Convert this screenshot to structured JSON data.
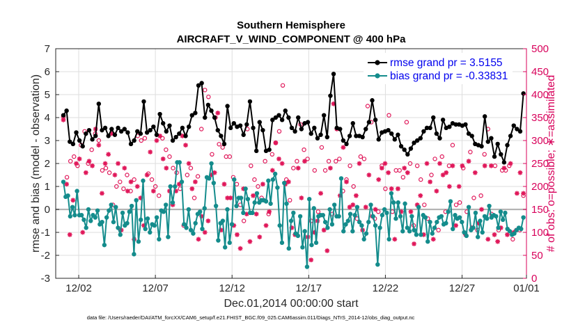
{
  "chart_data": {
    "type": "line",
    "title": "Southern Hemisphere",
    "subtitle": "AIRCRAFT_V_WIND_COMPONENT @ 400 hPa",
    "xlabel": "Dec.01,2014 00:00:00 start",
    "ylabel_left": "rmse and bias (model - observation)",
    "ylabel_right": "# of obs: o=possible; ∗=assimilated",
    "ylim_left": [
      -3,
      7
    ],
    "ylim_right": [
      0,
      500
    ],
    "yticks_left": [
      "-3",
      "-2",
      "-1",
      "0",
      "1",
      "2",
      "3",
      "4",
      "5",
      "6",
      "7"
    ],
    "yticks_right": [
      "0",
      "50",
      "100",
      "150",
      "200",
      "250",
      "300",
      "350",
      "400",
      "450",
      "500"
    ],
    "xlim": [
      0.5,
      31.2
    ],
    "xticks": [
      {
        "x": 2,
        "label": "12/02"
      },
      {
        "x": 7,
        "label": "12/07"
      },
      {
        "x": 12,
        "label": "12/12"
      },
      {
        "x": 17,
        "label": "12/17"
      },
      {
        "x": 22,
        "label": "12/22"
      },
      {
        "x": 27,
        "label": "12/27"
      },
      {
        "x": 32,
        "label": "01/01"
      }
    ],
    "grid": true,
    "legend_position": "top-right",
    "colors": {
      "rmse": "#000000",
      "bias": "#148c8c",
      "obs": "#e0185a",
      "zero_line": "#b4b4b4",
      "right_axis": "#d8005a"
    },
    "series": [
      {
        "name": "rmse grand pr = 3.5155",
        "values": [
          4.1,
          4.3,
          2.95,
          2.85,
          3.35,
          3.0,
          2.75,
          3.3,
          3.45,
          3.05,
          3.2,
          4.6,
          3.45,
          3.55,
          3.2,
          3.5,
          3.25,
          3.55,
          3.4,
          3.5,
          3.35,
          2.85,
          3.0,
          3.4,
          3.3,
          4.7,
          3.35,
          3.45,
          3.6,
          3.25,
          4.15,
          3.75,
          3.4,
          3.65,
          3.0,
          3.15,
          3.3,
          3.55,
          3.2,
          3.6,
          4.1,
          4.2,
          5.4,
          5.5,
          4.0,
          4.55,
          4.3,
          4.0,
          3.45,
          3.2,
          2.85,
          4.5,
          3.55,
          3.75,
          3.6,
          3.65,
          3.25,
          3.7,
          4.7,
          3.55,
          2.55,
          3.8,
          3.45,
          2.55,
          2.6,
          3.9,
          4.0,
          4.1,
          3.9,
          4.3,
          4.0,
          3.55,
          3.4,
          4.0,
          3.5,
          3.75,
          3.8,
          3.3,
          3.55,
          3.1,
          3.25,
          4.1,
          3.15,
          4.95,
          5.9,
          3.55,
          3.5,
          3.0,
          2.85,
          3.2,
          3.75,
          3.2,
          3.2,
          3.15,
          3.5,
          3.8,
          4.75,
          3.9,
          3.05,
          3.35,
          3.4,
          3.45,
          3.3,
          3.05,
          3.25,
          2.75,
          2.6,
          2.4,
          2.65,
          2.9,
          3.0,
          3.1,
          3.4,
          3.55,
          3.55,
          4.0,
          3.3,
          3.1,
          3.9,
          3.55,
          3.6,
          3.75,
          3.7,
          3.7,
          3.65,
          3.7,
          3.3,
          3.2,
          2.85,
          2.8,
          2.75,
          4.05,
          2.95,
          3.1,
          2.3,
          2.85,
          2.4,
          2.05,
          2.8,
          3.2,
          3.65,
          3.5,
          3.4,
          5.05
        ]
      },
      {
        "name": "bias grand pr = -0.33831",
        "values": [
          1.2,
          0.55,
          0.6,
          -0.3,
          0.1,
          -0.25,
          0.8,
          -0.25,
          -0.25,
          -0.45,
          -0.8,
          0.0,
          -0.5,
          -0.25,
          -0.35,
          -0.05,
          -0.65,
          -0.55,
          -1.55,
          -0.35,
          -0.05,
          0.2,
          -0.55,
          0.1,
          -0.8,
          -1.1,
          -0.15,
          -0.7,
          -0.6,
          -0.1,
          0.15,
          -1.95,
          0.4,
          -1.4,
          -0.45,
          1.25,
          -0.85,
          -0.4,
          -1.0,
          -0.65,
          -0.7,
          -0.35,
          -1.3,
          -0.05,
          -0.1,
          0.2,
          -1.2,
          1.0,
          0.3,
          1.0,
          2.05,
          2.05,
          1.2,
          -0.65,
          -0.8,
          0.0,
          -0.9,
          -1.05,
          -0.6,
          -0.2,
          -0.1,
          -0.85,
          0.05,
          1.4,
          1.35,
          2.0,
          1.15,
          0.15,
          -1.35,
          -0.6,
          -0.5,
          -1.65,
          0.0,
          -1.45,
          -0.65,
          1.3,
          0.15,
          0.5,
          0.5,
          -0.15,
          0.9,
          0.45,
          -0.15,
          -0.15,
          0.3,
          0.7,
          0.3,
          0.4,
          0.4,
          0.35,
          1.25,
          0.25,
          1.3,
          1.55,
          0.95,
          -0.7,
          -1.45,
          1.15,
          0.25,
          -1.7,
          -0.5,
          -0.15,
          -1.05,
          -1.15,
          -0.3,
          -1.65,
          -0.95,
          -2.5,
          0.45,
          -1.55,
          0.05,
          -1.45,
          -0.3,
          -0.25,
          -0.25,
          -0.55,
          -0.8,
          0.0,
          -0.65,
          0.2,
          -0.3,
          -0.3,
          1.35,
          -0.95,
          -0.65,
          -0.5,
          -0.2,
          -0.95,
          -0.25,
          0.1,
          -0.55,
          -0.7,
          -1.3,
          -1.05,
          -0.55,
          0.2,
          -0.3,
          -0.7,
          -2.4,
          -0.8,
          -0.25,
          0.0,
          -0.15,
          -1.3,
          0.7,
          0.3,
          -0.4,
          0.3,
          -0.3,
          -0.95,
          0.25,
          -0.8,
          -0.95,
          -0.3,
          -0.9,
          -1.1,
          0.1,
          -1.1,
          -0.25,
          -0.35,
          -1.4,
          -0.55,
          -1.05,
          -0.8,
          -0.55,
          -0.35,
          -0.3,
          -0.65,
          -0.6,
          -0.1,
          0.35,
          -0.85,
          -0.25,
          -0.4,
          -0.35,
          -0.55,
          -1.0,
          -1.15,
          0.1,
          -0.9,
          -0.8,
          -0.15,
          -1.2,
          -0.5,
          -1.0,
          -0.3,
          -0.4,
          0.15,
          -0.35,
          -0.25,
          -0.3,
          -0.8,
          -0.1,
          -0.45,
          -0.15,
          -0.85,
          -0.95,
          -1.1,
          -1.05,
          -0.9,
          -0.8,
          -0.85,
          -0.35
        ]
      }
    ],
    "obs_possible": [
      352,
      220,
      255,
      265,
      245,
      290,
      320,
      250,
      280,
      315,
      300,
      235,
      240,
      230,
      160,
      200,
      210,
      195,
      225,
      190,
      215,
      310,
      300,
      305,
      228,
      215,
      200,
      180,
      305,
      280,
      265,
      240,
      230,
      195,
      115,
      225,
      240,
      175,
      222,
      325,
      410,
      395,
      270,
      350,
      292,
      285,
      265,
      265,
      220,
      205,
      160,
      125,
      325,
      245,
      215,
      200,
      175,
      255,
      140,
      270,
      295,
      320,
      420,
      215,
      170,
      240,
      255,
      335,
      280,
      260,
      125,
      235,
      145,
      285,
      235,
      255,
      140,
      255,
      260,
      190,
      215,
      245,
      200,
      130,
      265,
      260,
      375,
      340,
      130,
      145,
      245,
      195,
      355,
      145,
      235,
      235,
      220,
      340,
      250,
      115,
      245,
      215,
      160,
      130,
      225,
      260,
      105,
      265,
      145,
      245,
      290,
      160,
      165,
      240,
      145,
      275,
      175,
      105,
      180,
      270,
      325,
      140,
      245,
      105,
      235,
      235,
      245,
      85,
      105,
      105,
      180
    ],
    "obs_assimilated": [
      345,
      205,
      95,
      170,
      250,
      260,
      100,
      230,
      255,
      245,
      325,
      290,
      185,
      250,
      270,
      315,
      225,
      250,
      105,
      240,
      190,
      210,
      85,
      200,
      175,
      115,
      225,
      275,
      190,
      300,
      310,
      260,
      240,
      190,
      160,
      190,
      205,
      310,
      290,
      250,
      195,
      210,
      85,
      135,
      100,
      125,
      225,
      230,
      360,
      105,
      205,
      175,
      175,
      115,
      95,
      65,
      195,
      140,
      80,
      180,
      140,
      90,
      205,
      115,
      145,
      235,
      295,
      260,
      250,
      205,
      210,
      110,
      95,
      240,
      175,
      255,
      90,
      40,
      100,
      125,
      185,
      105,
      60,
      240,
      380,
      325,
      180,
      285,
      210,
      155,
      160,
      180,
      250,
      105,
      155,
      225,
      135,
      150,
      215,
      240,
      250,
      230,
      195,
      85,
      195,
      145,
      240,
      230,
      145,
      75,
      160,
      180,
      95,
      250,
      210,
      85,
      190,
      250,
      225,
      230,
      200,
      245,
      115,
      200,
      245,
      95,
      255,
      110,
      230,
      120,
      150,
      245,
      85,
      245,
      95,
      80,
      110,
      240,
      95,
      250,
      100,
      185,
      230,
      185
    ]
  },
  "footer_text": "data file: /Users/raeder/DAI/ATM_forcXX/CAM6_setup/f.e21.FHIST_BGC.f09_025.CAM6assim.011/Diags_NTrS_2014-12/obs_diag_output.nc"
}
